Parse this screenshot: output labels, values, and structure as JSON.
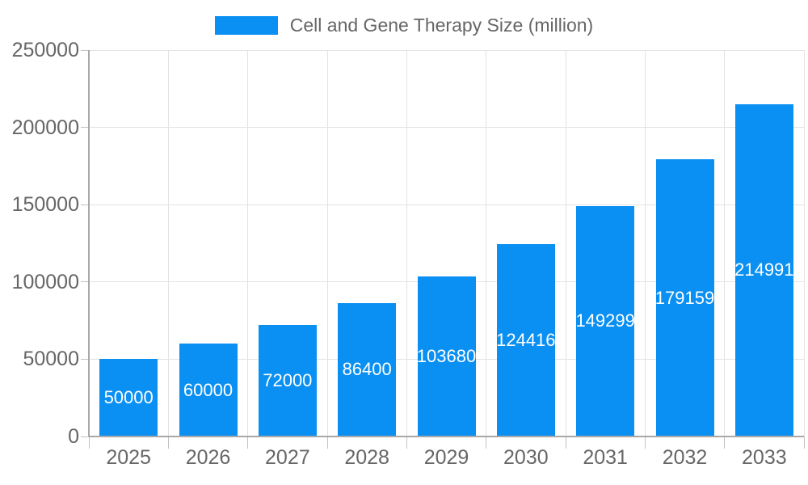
{
  "chart_data": {
    "type": "bar",
    "title": "Cell and Gene Therapy Size (million)",
    "categories": [
      "2025",
      "2026",
      "2027",
      "2028",
      "2029",
      "2030",
      "2031",
      "2032",
      "2033"
    ],
    "series": [
      {
        "name": "Cell and Gene Therapy Size (million)",
        "values": [
          50000,
          60000,
          72000,
          86400,
          103680,
          124416,
          149299,
          179159,
          214991
        ]
      }
    ],
    "value_labels": [
      "50000",
      "60000",
      "72000",
      "86400",
      "103680",
      "124416",
      "149299",
      "179159",
      "214991"
    ],
    "xlabel": "",
    "ylabel": "",
    "ylim": [
      0,
      250000
    ],
    "yticks": [
      0,
      50000,
      100000,
      150000,
      200000,
      250000
    ],
    "ytick_labels": [
      "0",
      "50000",
      "100000",
      "150000",
      "200000",
      "250000"
    ],
    "grid": true,
    "legend_position": "top"
  },
  "colors": {
    "bar": "#0a8ff2",
    "grid": "#e3e3e3",
    "axis": "#a8a8a8",
    "tick": "#c2c2c2",
    "text": "#666666",
    "value_label": "#ffffff",
    "background": "#ffffff"
  }
}
